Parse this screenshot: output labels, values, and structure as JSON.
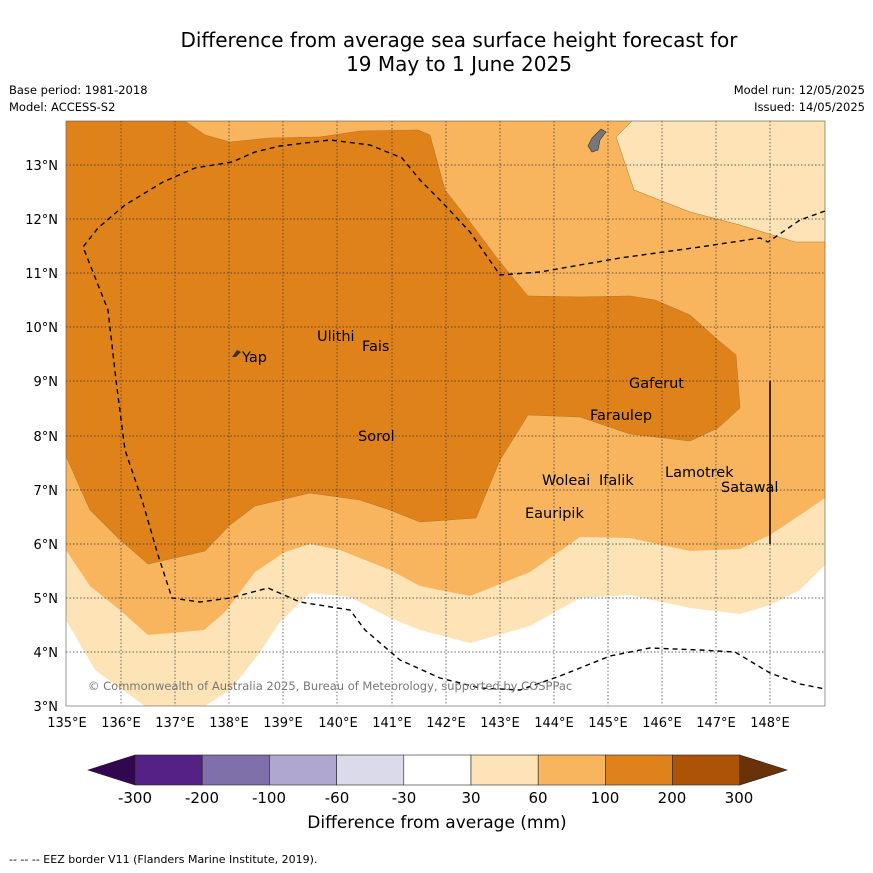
{
  "title": {
    "line1": "Difference from average sea surface height forecast for",
    "line2": "19 May to 1 June 2025"
  },
  "meta": {
    "base_period": "Base period: 1981-2018",
    "model": "Model: ACCESS-S2",
    "model_run": "Model run: 12/05/2025",
    "issued": "Issued: 14/05/2025"
  },
  "map": {
    "lat_labels": [
      "13°N",
      "12°N",
      "11°N",
      "10°N",
      "9°N",
      "8°N",
      "7°N",
      "6°N",
      "5°N",
      "4°N",
      "3°N"
    ],
    "lon_labels": [
      "135°E",
      "136°E",
      "137°E",
      "138°E",
      "139°E",
      "140°E",
      "141°E",
      "142°E",
      "143°E",
      "144°E",
      "145°E",
      "146°E",
      "147°E",
      "148°E"
    ],
    "places": [
      "Yap",
      "Ulithi",
      "Fais",
      "Gaferut",
      "Faraulep",
      "Sorol",
      "Lamotrek",
      "Woleai",
      "Ifalik",
      "Satawal",
      "Eauripik"
    ],
    "copyright": "© Commonwealth of Australia 2025, Bureau of Meteorology, supported by COSPPac",
    "colors": {
      "c30_60": "#fde3b6",
      "c60_100": "#f9b45e",
      "c100_200": "#e0821a",
      "c200_300": "#ac5305",
      "land": "#777777"
    }
  },
  "colorbar": {
    "ticks": [
      "-300",
      "-200",
      "-100",
      "-60",
      "-30",
      "30",
      "60",
      "100",
      "200",
      "300"
    ],
    "colors": [
      "#32074f",
      "#542186",
      "#7f6fab",
      "#b0a7d0",
      "#dadaeb",
      "#ffffff",
      "#fde3b6",
      "#f9b45e",
      "#e0821a",
      "#ac5305",
      "#6a3208"
    ],
    "title": "Difference from average (mm)"
  },
  "footnote": "-- -- -- EEZ border V11 (Flanders Marine Institute, 2019)."
}
